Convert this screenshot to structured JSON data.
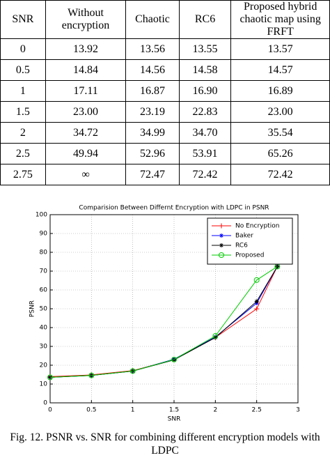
{
  "table": {
    "header": [
      "SNR",
      "Without encryption",
      "Chaotic",
      "RC6",
      "Proposed hybrid chaotic map using FRFT"
    ],
    "rows": [
      [
        "0",
        "13.92",
        "13.56",
        "13.55",
        "13.57"
      ],
      [
        "0.5",
        "14.84",
        "14.56",
        "14.58",
        "14.57"
      ],
      [
        "1",
        "17.11",
        "16.87",
        "16.90",
        "16.89"
      ],
      [
        "1.5",
        "23.00",
        "23.19",
        "22.83",
        "23.00"
      ],
      [
        "2",
        "34.72",
        "34.99",
        "34.70",
        "35.54"
      ],
      [
        "2.5",
        "49.94",
        "52.96",
        "53.91",
        "65.26"
      ],
      [
        "2.75",
        "∞",
        "72.47",
        "72.42",
        "72.42"
      ]
    ]
  },
  "chart_data": {
    "type": "line",
    "title": "Comparision Between Differnt Encryption with LDPC in PSNR",
    "x_label": "SNR",
    "y_label": "PSNR",
    "x": [
      0,
      0.5,
      1,
      1.5,
      2,
      2.5,
      2.75
    ],
    "series": [
      {
        "name": "No Encryption",
        "color": "#ff0000",
        "marker": "plus",
        "values": [
          13.92,
          14.84,
          17.11,
          23.0,
          34.72,
          49.94,
          72.5
        ]
      },
      {
        "name": "Baker",
        "color": "#0000ff",
        "marker": "star",
        "values": [
          13.56,
          14.56,
          16.87,
          23.19,
          34.99,
          52.96,
          72.47
        ]
      },
      {
        "name": "RC6",
        "color": "#000000",
        "marker": "star",
        "values": [
          13.55,
          14.58,
          16.9,
          22.83,
          34.7,
          53.91,
          72.42
        ]
      },
      {
        "name": "Proposed",
        "color": "#00cc00",
        "marker": "circle",
        "values": [
          13.57,
          14.57,
          16.89,
          23.0,
          35.54,
          65.26,
          72.42
        ]
      }
    ],
    "xlim": [
      0,
      3
    ],
    "xticks": [
      0,
      0.5,
      1,
      1.5,
      2,
      2.5,
      3
    ],
    "ylim": [
      0,
      100
    ],
    "yticks": [
      0,
      10,
      20,
      30,
      40,
      50,
      60,
      70,
      80,
      90,
      100
    ],
    "grid": true,
    "legend": "top-right"
  },
  "caption": "Fig. 12. PSNR vs. SNR for combining different encryption models with LDPC"
}
